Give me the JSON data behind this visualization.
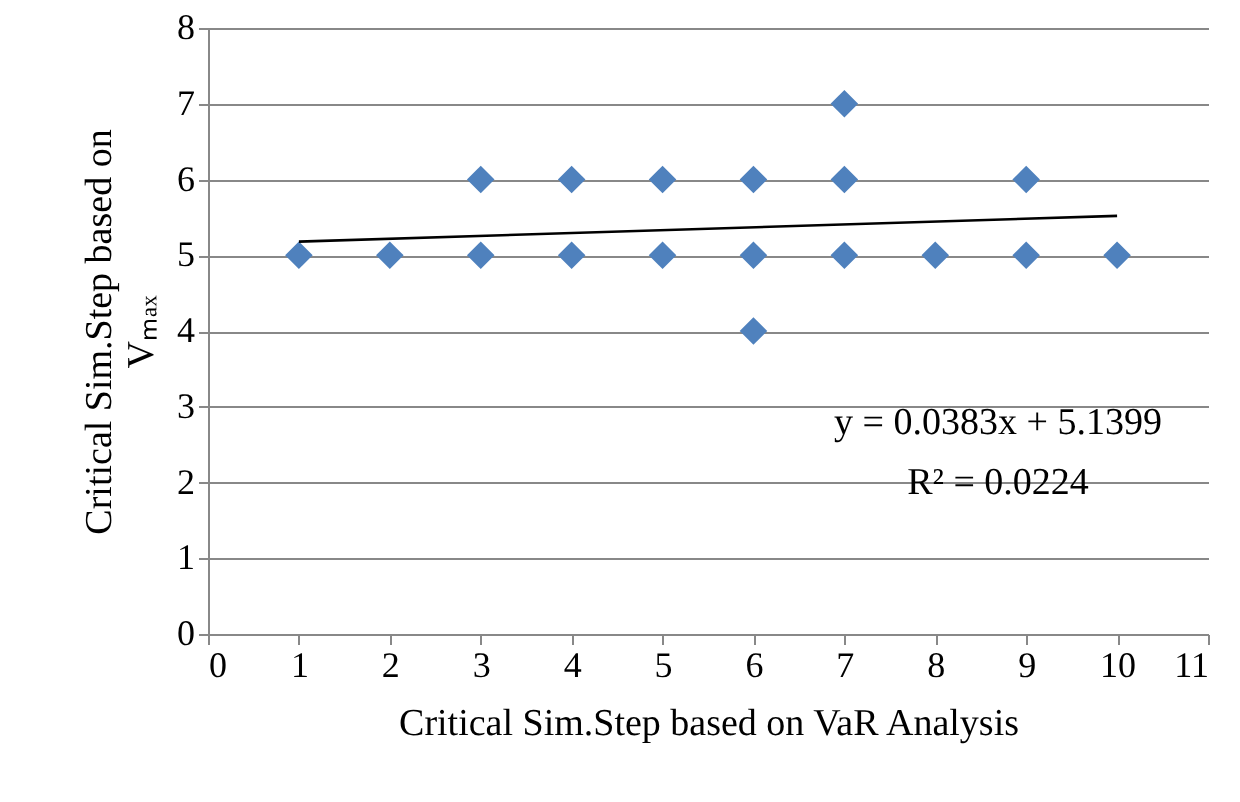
{
  "chart_data": {
    "type": "scatter",
    "xlabel": "Critical Sim.Step based on VaR Analysis",
    "ylabel": "Critical Sim.Step based on Vₘₐₓ",
    "series": [
      {
        "color": "#4f81bd",
        "marker": "diamond",
        "x": [
          1,
          2,
          3,
          3,
          4,
          4,
          5,
          5,
          6,
          6,
          6,
          7,
          7,
          7,
          8,
          9,
          9,
          10
        ],
        "values": [
          5,
          5,
          5,
          6,
          5,
          6,
          5,
          6,
          4,
          5,
          6,
          5,
          6,
          7,
          5,
          5,
          6,
          5
        ]
      },
      {
        "type": "line",
        "color": "#000000",
        "x": [
          1,
          10
        ],
        "values": [
          5.18,
          5.52
        ]
      }
    ],
    "xlim": [
      0,
      11
    ],
    "xticks": [
      0,
      1,
      2,
      3,
      4,
      5,
      6,
      7,
      8,
      9,
      10,
      11
    ],
    "ylim": [
      0,
      8
    ],
    "yticks": [
      0,
      1,
      2,
      3,
      4,
      5,
      6,
      7,
      8
    ],
    "grid": "y",
    "annotations": [
      "y = 0.0383x + 5.1399",
      "R² = 0.0224"
    ]
  }
}
